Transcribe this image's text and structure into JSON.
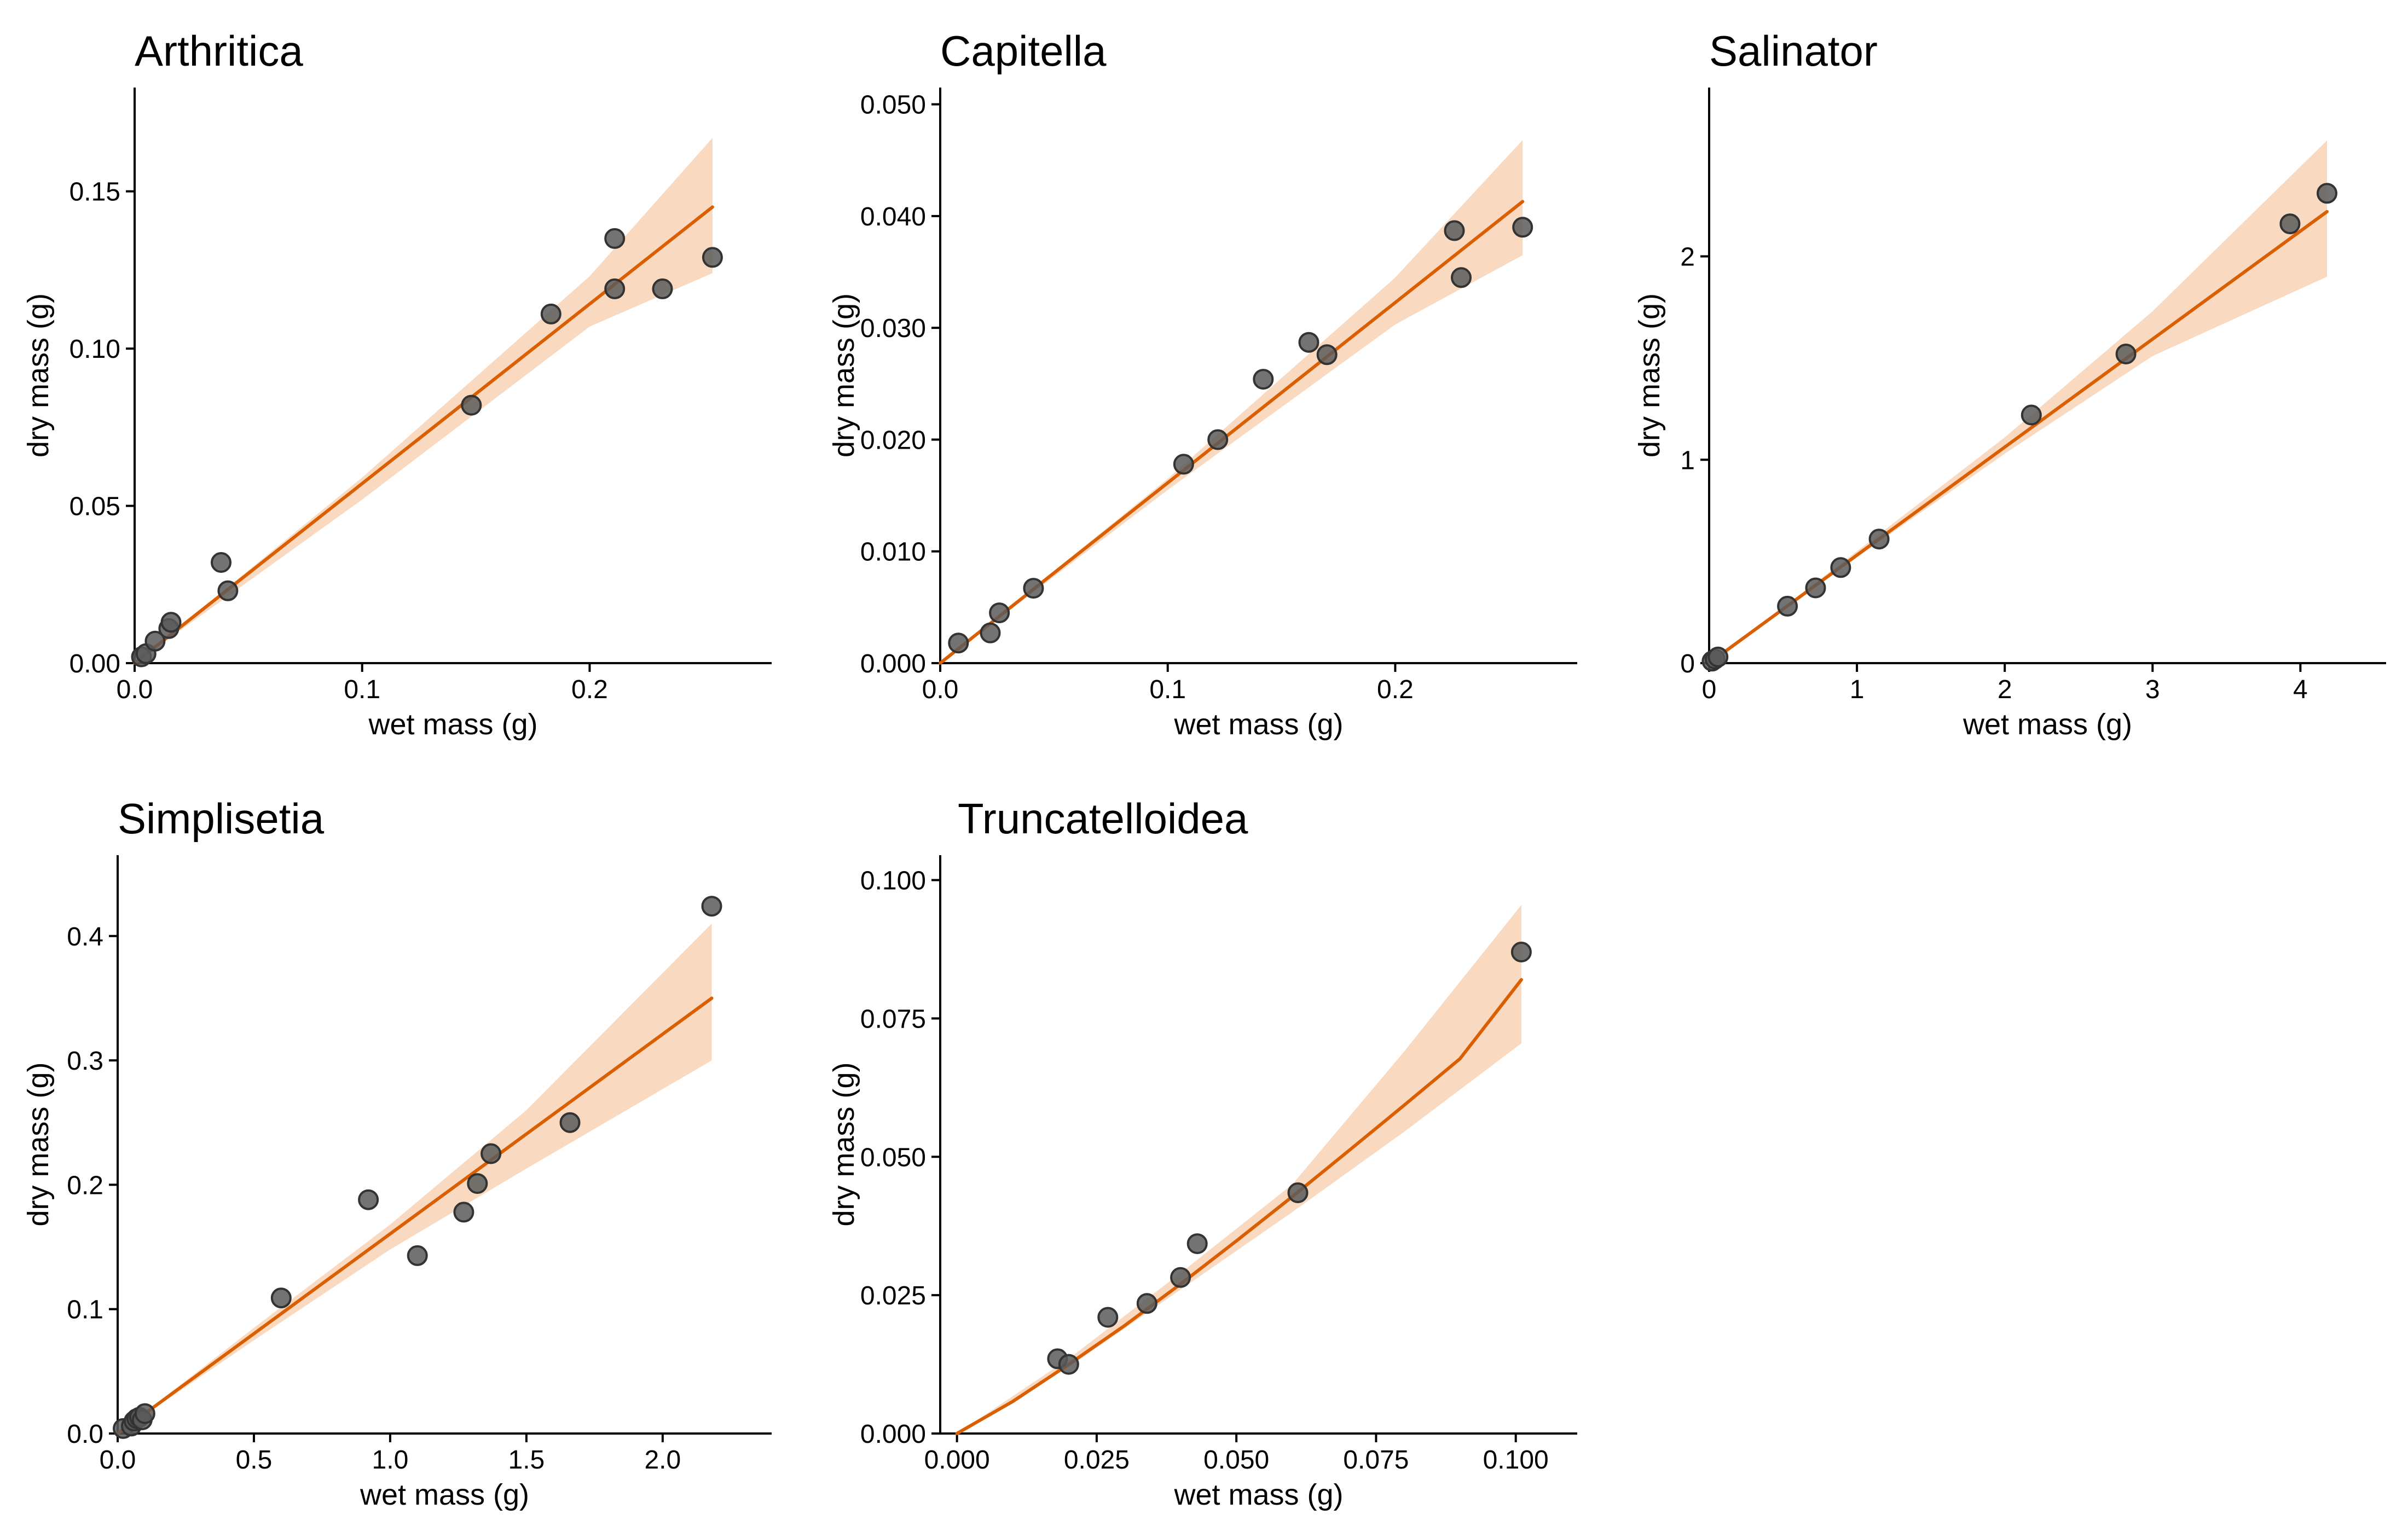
{
  "chart_data": [
    {
      "type": "scatter",
      "title": "Arthritica",
      "xlabel": "wet mass (g)",
      "ylabel": "dry mass (g)",
      "xlim": [
        0,
        0.28
      ],
      "ylim": [
        0,
        0.183
      ],
      "xticks": [
        0,
        0.1,
        0.2
      ],
      "xtick_labels": [
        "0.0",
        "0.1",
        "0.2"
      ],
      "yticks": [
        0,
        0.05,
        0.1,
        0.15
      ],
      "ytick_labels": [
        "0.00",
        "0.05",
        "0.10",
        "0.15"
      ],
      "grid": false,
      "points": [
        [
          0.003,
          0.002
        ],
        [
          0.005,
          0.003
        ],
        [
          0.009,
          0.007
        ],
        [
          0.015,
          0.011
        ],
        [
          0.016,
          0.013
        ],
        [
          0.038,
          0.032
        ],
        [
          0.041,
          0.023
        ],
        [
          0.148,
          0.082
        ],
        [
          0.183,
          0.111
        ],
        [
          0.211,
          0.135
        ],
        [
          0.211,
          0.119
        ],
        [
          0.232,
          0.119
        ],
        [
          0.254,
          0.129
        ]
      ],
      "fit": {
        "x": [
          0,
          0.254
        ],
        "y": [
          0,
          0.145
        ]
      },
      "ci": {
        "x": [
          0,
          0.1,
          0.2,
          0.254
        ],
        "lower": [
          0,
          0.052,
          0.107,
          0.124
        ],
        "upper": [
          0,
          0.059,
          0.123,
          0.167
        ]
      },
      "colors": {
        "points": "#5b5b5b",
        "fit": "#d95f02",
        "band": "#f9d9c0"
      }
    },
    {
      "type": "scatter",
      "title": "Capitella",
      "xlabel": "wet mass (g)",
      "ylabel": "dry mass (g)",
      "xlim": [
        0,
        0.28
      ],
      "ylim": [
        0,
        0.0515
      ],
      "xticks": [
        0,
        0.1,
        0.2
      ],
      "xtick_labels": [
        "0.0",
        "0.1",
        "0.2"
      ],
      "yticks": [
        0,
        0.01,
        0.02,
        0.03,
        0.04,
        0.05
      ],
      "ytick_labels": [
        "0.000",
        "0.010",
        "0.020",
        "0.030",
        "0.040",
        "0.050"
      ],
      "grid": false,
      "points": [
        [
          0.008,
          0.0018
        ],
        [
          0.022,
          0.0027
        ],
        [
          0.026,
          0.0045
        ],
        [
          0.041,
          0.0067
        ],
        [
          0.107,
          0.0178
        ],
        [
          0.122,
          0.02
        ],
        [
          0.142,
          0.0254
        ],
        [
          0.162,
          0.0287
        ],
        [
          0.17,
          0.0276
        ],
        [
          0.226,
          0.0387
        ],
        [
          0.229,
          0.0345
        ],
        [
          0.256,
          0.039
        ]
      ],
      "fit": {
        "x": [
          0,
          0.256
        ],
        "y": [
          0,
          0.0413
        ]
      },
      "ci": {
        "x": [
          0,
          0.1,
          0.2,
          0.256
        ],
        "lower": [
          0,
          0.0155,
          0.0303,
          0.0365
        ],
        "upper": [
          0,
          0.0165,
          0.0345,
          0.0468
        ]
      },
      "colors": {
        "points": "#5b5b5b",
        "fit": "#d95f02",
        "band": "#f9d9c0"
      }
    },
    {
      "type": "scatter",
      "title": "Salinator",
      "xlabel": "wet mass (g)",
      "ylabel": "dry mass (g)",
      "xlim": [
        0,
        4.58
      ],
      "ylim": [
        0,
        2.83
      ],
      "xticks": [
        0,
        1,
        2,
        3,
        4
      ],
      "xtick_labels": [
        "0",
        "1",
        "2",
        "3",
        "4"
      ],
      "yticks": [
        0,
        1,
        2
      ],
      "ytick_labels": [
        "0",
        "1",
        "2"
      ],
      "grid": false,
      "points": [
        [
          0.02,
          0.01
        ],
        [
          0.04,
          0.02
        ],
        [
          0.06,
          0.03
        ],
        [
          0.53,
          0.28
        ],
        [
          0.72,
          0.37
        ],
        [
          0.89,
          0.47
        ],
        [
          1.15,
          0.61
        ],
        [
          2.18,
          1.22
        ],
        [
          2.82,
          1.52
        ],
        [
          3.93,
          2.16
        ],
        [
          4.18,
          2.31
        ]
      ],
      "fit": {
        "x": [
          0,
          4.18
        ],
        "y": [
          0,
          2.22
        ]
      },
      "ci": {
        "x": [
          0,
          1,
          2,
          3,
          4.18
        ],
        "lower": [
          0,
          0.52,
          1.03,
          1.51,
          1.9
        ],
        "upper": [
          0,
          0.55,
          1.11,
          1.73,
          2.57
        ]
      },
      "colors": {
        "points": "#5b5b5b",
        "fit": "#d95f02",
        "band": "#f9d9c0"
      }
    },
    {
      "type": "scatter",
      "title": "Simplisetia",
      "xlabel": "wet mass (g)",
      "ylabel": "dry mass (g)",
      "xlim": [
        0,
        2.4
      ],
      "ylim": [
        0,
        0.465
      ],
      "xticks": [
        0,
        0.5,
        1,
        1.5,
        2
      ],
      "xtick_labels": [
        "0.0",
        "0.5",
        "1.0",
        "1.5",
        "2.0"
      ],
      "yticks": [
        0,
        0.1,
        0.2,
        0.3,
        0.4
      ],
      "ytick_labels": [
        "0.0",
        "0.1",
        "0.2",
        "0.3",
        "0.4"
      ],
      "grid": false,
      "points": [
        [
          0.02,
          0.004
        ],
        [
          0.05,
          0.006
        ],
        [
          0.06,
          0.01
        ],
        [
          0.07,
          0.012
        ],
        [
          0.08,
          0.013
        ],
        [
          0.09,
          0.011
        ],
        [
          0.1,
          0.016
        ],
        [
          0.6,
          0.109
        ],
        [
          0.92,
          0.188
        ],
        [
          1.1,
          0.143
        ],
        [
          1.27,
          0.178
        ],
        [
          1.32,
          0.201
        ],
        [
          1.37,
          0.225
        ],
        [
          1.66,
          0.25
        ],
        [
          2.18,
          0.424
        ]
      ],
      "fit": {
        "x": [
          0,
          2.18
        ],
        "y": [
          0,
          0.35
        ]
      },
      "ci": {
        "x": [
          0,
          0.5,
          1,
          1.5,
          2.18
        ],
        "lower": [
          0,
          0.075,
          0.148,
          0.213,
          0.3
        ],
        "upper": [
          0,
          0.085,
          0.168,
          0.26,
          0.41
        ]
      },
      "colors": {
        "points": "#5b5b5b",
        "fit": "#d95f02",
        "band": "#f9d9c0"
      }
    },
    {
      "type": "scatter",
      "title": "Truncatelloidea",
      "xlabel": "wet mass (g)",
      "ylabel": "dry mass (g)",
      "xlim": [
        -0.003,
        0.111
      ],
      "ylim": [
        0,
        0.1045
      ],
      "xticks": [
        0,
        0.025,
        0.05,
        0.075,
        0.1
      ],
      "xtick_labels": [
        "0.000",
        "0.025",
        "0.050",
        "0.075",
        "0.100"
      ],
      "yticks": [
        0,
        0.025,
        0.05,
        0.075,
        0.1
      ],
      "ytick_labels": [
        "0.000",
        "0.025",
        "0.050",
        "0.075",
        "0.100"
      ],
      "grid": false,
      "points": [
        [
          0.018,
          0.0135
        ],
        [
          0.02,
          0.0125
        ],
        [
          0.027,
          0.021
        ],
        [
          0.034,
          0.0235
        ],
        [
          0.04,
          0.0282
        ],
        [
          0.043,
          0.0343
        ],
        [
          0.061,
          0.0435
        ],
        [
          0.101,
          0.087
        ]
      ],
      "fit": {
        "x": [
          0,
          0.01,
          0.02,
          0.03,
          0.04,
          0.05,
          0.06,
          0.07,
          0.08,
          0.09,
          0.101
        ],
        "y": [
          0,
          0.0058,
          0.0125,
          0.0195,
          0.027,
          0.0348,
          0.0428,
          0.051,
          0.0593,
          0.0677,
          0.082
        ]
      },
      "ci": {
        "x": [
          0,
          0.02,
          0.04,
          0.06,
          0.08,
          0.101
        ],
        "lower": [
          0,
          0.012,
          0.026,
          0.04,
          0.0545,
          0.0705
        ],
        "upper": [
          0,
          0.0135,
          0.029,
          0.045,
          0.069,
          0.0955
        ]
      },
      "colors": {
        "points": "#5b5b5b",
        "fit": "#d95f02",
        "band": "#f9d9c0"
      }
    }
  ]
}
